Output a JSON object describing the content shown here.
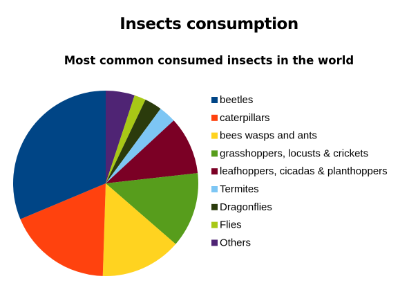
{
  "chart_data": {
    "type": "pie",
    "title": "Insects consumption",
    "subtitle": "Most common consumed insects in the world",
    "legend_position": "right",
    "start_angle_deg": 0,
    "direction": "clockwise",
    "slices": [
      {
        "label": "Others",
        "value": 5,
        "color": "#4f2474"
      },
      {
        "label": "Flies",
        "value": 2,
        "color": "#a8c816"
      },
      {
        "label": "Dragonflies",
        "value": 3,
        "color": "#2b3b0c"
      },
      {
        "label": "Termites",
        "value": 3,
        "color": "#7dc6f4"
      },
      {
        "label": "leafhoppers, cicadas & planthoppers",
        "value": 10,
        "color": "#7b0025"
      },
      {
        "label": "grasshoppers, locusts & crickets",
        "value": 13,
        "color": "#579d1c"
      },
      {
        "label": "bees wasps and ants",
        "value": 14,
        "color": "#ffd320"
      },
      {
        "label": "caterpillars",
        "value": 18,
        "color": "#ff420e"
      },
      {
        "label": "beetles",
        "value": 31,
        "color": "#004586"
      }
    ],
    "legend_order": [
      "beetles",
      "caterpillars",
      "bees wasps and ants",
      "grasshoppers, locusts & crickets",
      "leafhoppers, cicadas & planthoppers",
      "Termites",
      "Dragonflies",
      "Flies",
      "Others"
    ]
  }
}
